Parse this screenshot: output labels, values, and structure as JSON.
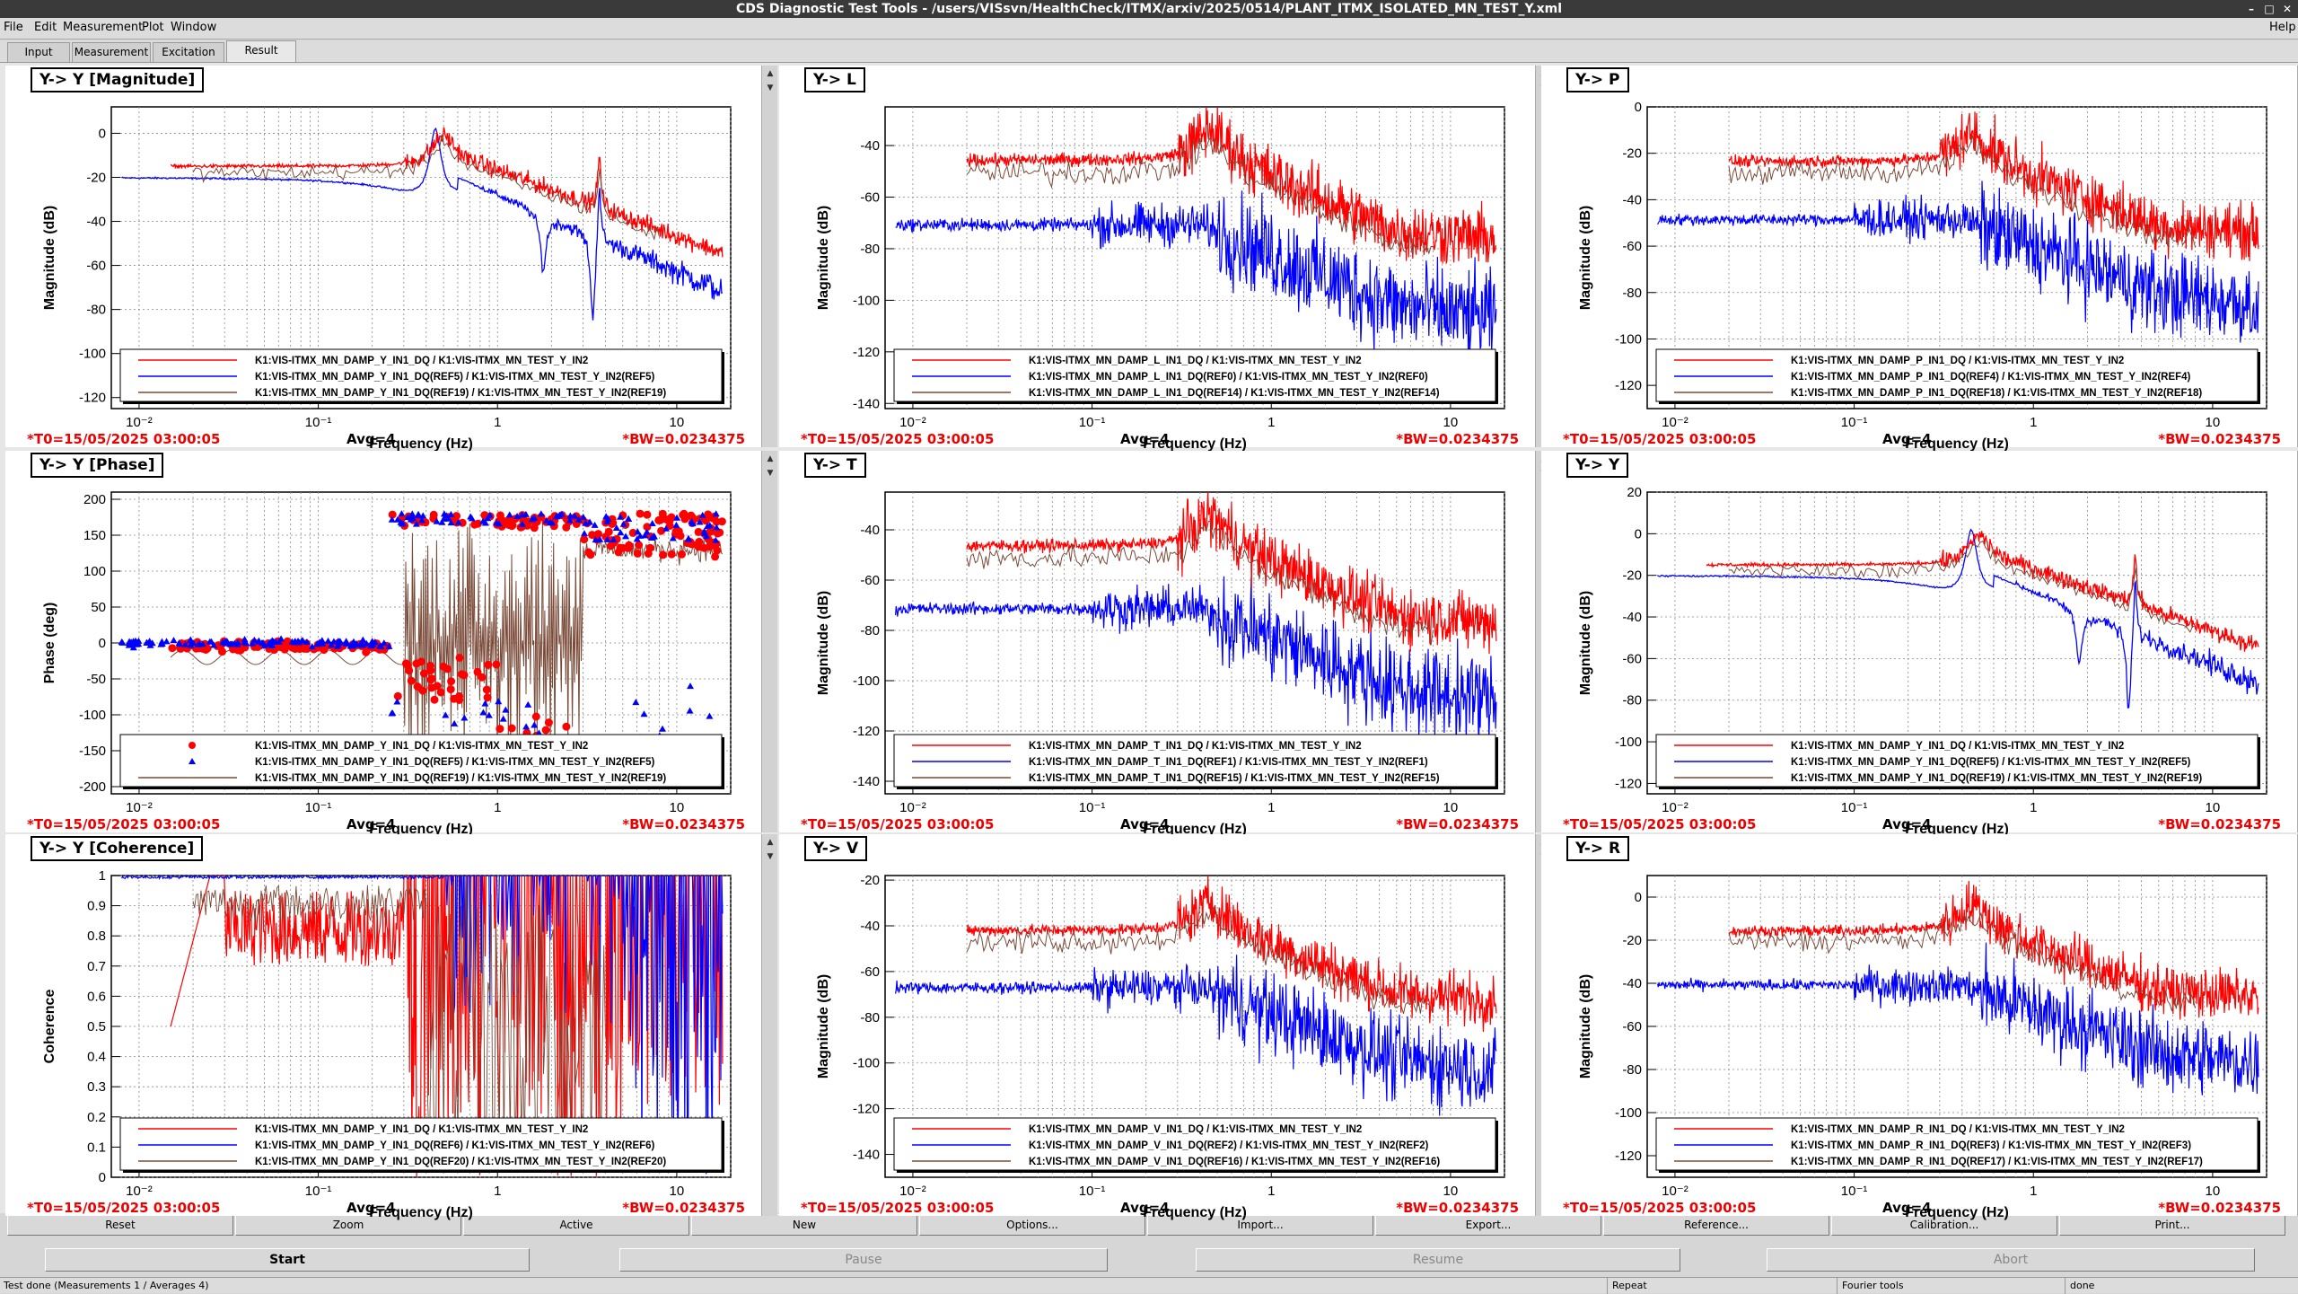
{
  "window": {
    "title": "CDS Diagnostic Test Tools - /users/VISsvn/HealthCheck/ITMX/arxiv/2025/0514/PLANT_ITMX_ISOLATED_MN_TEST_Y.xml"
  },
  "menu": [
    "File",
    "Edit",
    "Measurement",
    "Plot",
    "Window"
  ],
  "help_label": "Help",
  "tabs": [
    "Input",
    "Measurement",
    "Excitation",
    "Result"
  ],
  "footer": {
    "t0": "*T0=15/05/2025 03:00:05",
    "avg": "Avg=4",
    "bw": "*BW=0.0234375"
  },
  "buttons_row1": [
    "Reset",
    "Zoom",
    "Active",
    "New",
    "Options...",
    "Import...",
    "Export...",
    "Reference...",
    "Calibration...",
    "Print..."
  ],
  "buttons_row2": [
    "Start",
    "Pause",
    "Resume",
    "Abort"
  ],
  "status": {
    "left": "Test done (Measurements 1 / Averages 4)",
    "repeat": "Repeat",
    "fourier": "Fourier tools",
    "done": "done"
  },
  "colors": {
    "red": "#ff0000",
    "blue": "#0000ff",
    "brown": "#7a4a38"
  },
  "xaxis": {
    "label": "Frequency (Hz)",
    "ticks": [
      "10⁻²",
      "10⁻¹",
      "1",
      "10"
    ],
    "range": [
      0.007,
      20
    ],
    "scale": "log"
  },
  "panels": [
    {
      "title": "Y-> Y [Magnitude]",
      "ylabel": "Magnitude (dB)",
      "yticks": [
        0,
        -20,
        -40,
        -60,
        -80,
        -100,
        -120
      ],
      "yrange": [
        -125,
        12
      ],
      "kind": "mag_y",
      "legend": [
        "K1:VIS-ITMX_MN_DAMP_Y_IN1_DQ / K1:VIS-ITMX_MN_TEST_Y_IN2",
        "K1:VIS-ITMX_MN_DAMP_Y_IN1_DQ(REF5) / K1:VIS-ITMX_MN_TEST_Y_IN2(REF5)",
        "K1:VIS-ITMX_MN_DAMP_Y_IN1_DQ(REF19) / K1:VIS-ITMX_MN_TEST_Y_IN2(REF19)"
      ]
    },
    {
      "title": "Y-> L",
      "ylabel": "Magnitude (dB)",
      "yticks": [
        -40,
        -60,
        -80,
        -100,
        -120,
        -140
      ],
      "yrange": [
        -142,
        -25
      ],
      "kind": "cross",
      "legend": [
        "K1:VIS-ITMX_MN_DAMP_L_IN1_DQ / K1:VIS-ITMX_MN_TEST_Y_IN2",
        "K1:VIS-ITMX_MN_DAMP_L_IN1_DQ(REF0) / K1:VIS-ITMX_MN_TEST_Y_IN2(REF0)",
        "K1:VIS-ITMX_MN_DAMP_L_IN1_DQ(REF14) / K1:VIS-ITMX_MN_TEST_Y_IN2(REF14)"
      ]
    },
    {
      "title": "Y-> P",
      "ylabel": "Magnitude (dB)",
      "yticks": [
        0,
        -20,
        -40,
        -60,
        -80,
        -100,
        -120
      ],
      "yrange": [
        -130,
        0
      ],
      "kind": "cross",
      "legend": [
        "K1:VIS-ITMX_MN_DAMP_P_IN1_DQ / K1:VIS-ITMX_MN_TEST_Y_IN2",
        "K1:VIS-ITMX_MN_DAMP_P_IN1_DQ(REF4) / K1:VIS-ITMX_MN_TEST_Y_IN2(REF4)",
        "K1:VIS-ITMX_MN_DAMP_P_IN1_DQ(REF18) / K1:VIS-ITMX_MN_TEST_Y_IN2(REF18)"
      ]
    },
    {
      "title": "Y-> Y [Phase]",
      "ylabel": "Phase (deg)",
      "yticks": [
        200,
        150,
        100,
        50,
        0,
        -50,
        -100,
        -150,
        -200
      ],
      "yrange": [
        -210,
        210
      ],
      "kind": "phase",
      "legend": [
        "K1:VIS-ITMX_MN_DAMP_Y_IN1_DQ / K1:VIS-ITMX_MN_TEST_Y_IN2",
        "K1:VIS-ITMX_MN_DAMP_Y_IN1_DQ(REF5) / K1:VIS-ITMX_MN_TEST_Y_IN2(REF5)",
        "K1:VIS-ITMX_MN_DAMP_Y_IN1_DQ(REF19) / K1:VIS-ITMX_MN_TEST_Y_IN2(REF19)"
      ]
    },
    {
      "title": "Y-> T",
      "ylabel": "Magnitude (dB)",
      "yticks": [
        -40,
        -60,
        -80,
        -100,
        -120,
        -140
      ],
      "yrange": [
        -145,
        -25
      ],
      "kind": "cross",
      "legend": [
        "K1:VIS-ITMX_MN_DAMP_T_IN1_DQ / K1:VIS-ITMX_MN_TEST_Y_IN2",
        "K1:VIS-ITMX_MN_DAMP_T_IN1_DQ(REF1) / K1:VIS-ITMX_MN_TEST_Y_IN2(REF1)",
        "K1:VIS-ITMX_MN_DAMP_T_IN1_DQ(REF15) / K1:VIS-ITMX_MN_TEST_Y_IN2(REF15)"
      ]
    },
    {
      "title": "Y-> Y",
      "ylabel": "Magnitude (dB)",
      "yticks": [
        20,
        0,
        -20,
        -40,
        -60,
        -80,
        -100,
        -120
      ],
      "yrange": [
        -125,
        20
      ],
      "kind": "mag_y",
      "legend": [
        "K1:VIS-ITMX_MN_DAMP_Y_IN1_DQ / K1:VIS-ITMX_MN_TEST_Y_IN2",
        "K1:VIS-ITMX_MN_DAMP_Y_IN1_DQ(REF5) / K1:VIS-ITMX_MN_TEST_Y_IN2(REF5)",
        "K1:VIS-ITMX_MN_DAMP_Y_IN1_DQ(REF19) / K1:VIS-ITMX_MN_TEST_Y_IN2(REF19)"
      ]
    },
    {
      "title": "Y-> Y [Coherence]",
      "ylabel": "Coherence",
      "yticks": [
        1,
        0.9,
        0.8,
        0.7,
        0.6,
        0.5,
        0.4,
        0.3,
        0.2,
        0.1,
        0
      ],
      "yrange": [
        0,
        1
      ],
      "kind": "coh",
      "legend": [
        "K1:VIS-ITMX_MN_DAMP_Y_IN1_DQ / K1:VIS-ITMX_MN_TEST_Y_IN2",
        "K1:VIS-ITMX_MN_DAMP_Y_IN1_DQ(REF6) / K1:VIS-ITMX_MN_TEST_Y_IN2(REF6)",
        "K1:VIS-ITMX_MN_DAMP_Y_IN1_DQ(REF20) / K1:VIS-ITMX_MN_TEST_Y_IN2(REF20)"
      ]
    },
    {
      "title": "Y-> V",
      "ylabel": "Magnitude (dB)",
      "yticks": [
        -20,
        -40,
        -60,
        -80,
        -100,
        -120,
        -140
      ],
      "yrange": [
        -150,
        -18
      ],
      "kind": "cross",
      "legend": [
        "K1:VIS-ITMX_MN_DAMP_V_IN1_DQ / K1:VIS-ITMX_MN_TEST_Y_IN2",
        "K1:VIS-ITMX_MN_DAMP_V_IN1_DQ(REF2) / K1:VIS-ITMX_MN_TEST_Y_IN2(REF2)",
        "K1:VIS-ITMX_MN_DAMP_V_IN1_DQ(REF16) / K1:VIS-ITMX_MN_TEST_Y_IN2(REF16)"
      ]
    },
    {
      "title": "Y-> R",
      "ylabel": "Magnitude (dB)",
      "yticks": [
        0,
        -20,
        -40,
        -60,
        -80,
        -100,
        -120
      ],
      "yrange": [
        -130,
        10
      ],
      "kind": "cross",
      "legend": [
        "K1:VIS-ITMX_MN_DAMP_R_IN1_DQ / K1:VIS-ITMX_MN_TEST_Y_IN2",
        "K1:VIS-ITMX_MN_DAMP_R_IN1_DQ(REF3) / K1:VIS-ITMX_MN_TEST_Y_IN2(REF3)",
        "K1:VIS-ITMX_MN_DAMP_R_IN1_DQ(REF17) / K1:VIS-ITMX_MN_TEST_Y_IN2(REF17)"
      ]
    }
  ]
}
